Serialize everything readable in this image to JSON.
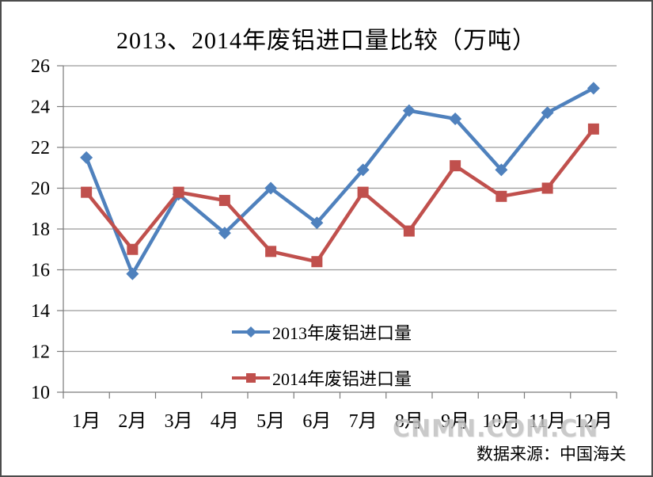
{
  "page": {
    "watermark": "CNMN.COM.CN",
    "source": "数据来源：中国海关"
  },
  "chart_data": {
    "type": "line",
    "title": "2013、2014年废铝进口量比较（万吨）",
    "categories": [
      "1月",
      "2月",
      "3月",
      "4月",
      "5月",
      "6月",
      "7月",
      "8月",
      "9月",
      "10月",
      "11月",
      "12月"
    ],
    "series": [
      {
        "name": "2013年废铝进口量",
        "color": "#4F81BD",
        "marker": "diamond",
        "values": [
          21.5,
          15.8,
          19.7,
          17.8,
          20.0,
          18.3,
          20.9,
          23.8,
          23.4,
          20.9,
          23.7,
          24.9
        ]
      },
      {
        "name": "2014年废铝进口量",
        "color": "#C0504D",
        "marker": "square",
        "values": [
          19.8,
          17.0,
          19.8,
          19.4,
          16.9,
          16.4,
          19.8,
          17.9,
          21.1,
          19.6,
          20.0,
          22.9
        ]
      }
    ],
    "xlabel": "",
    "ylabel": "",
    "ylim": [
      10,
      26
    ],
    "ytick_step": 2,
    "grid": true,
    "legend_position": "inside-bottom-center"
  }
}
